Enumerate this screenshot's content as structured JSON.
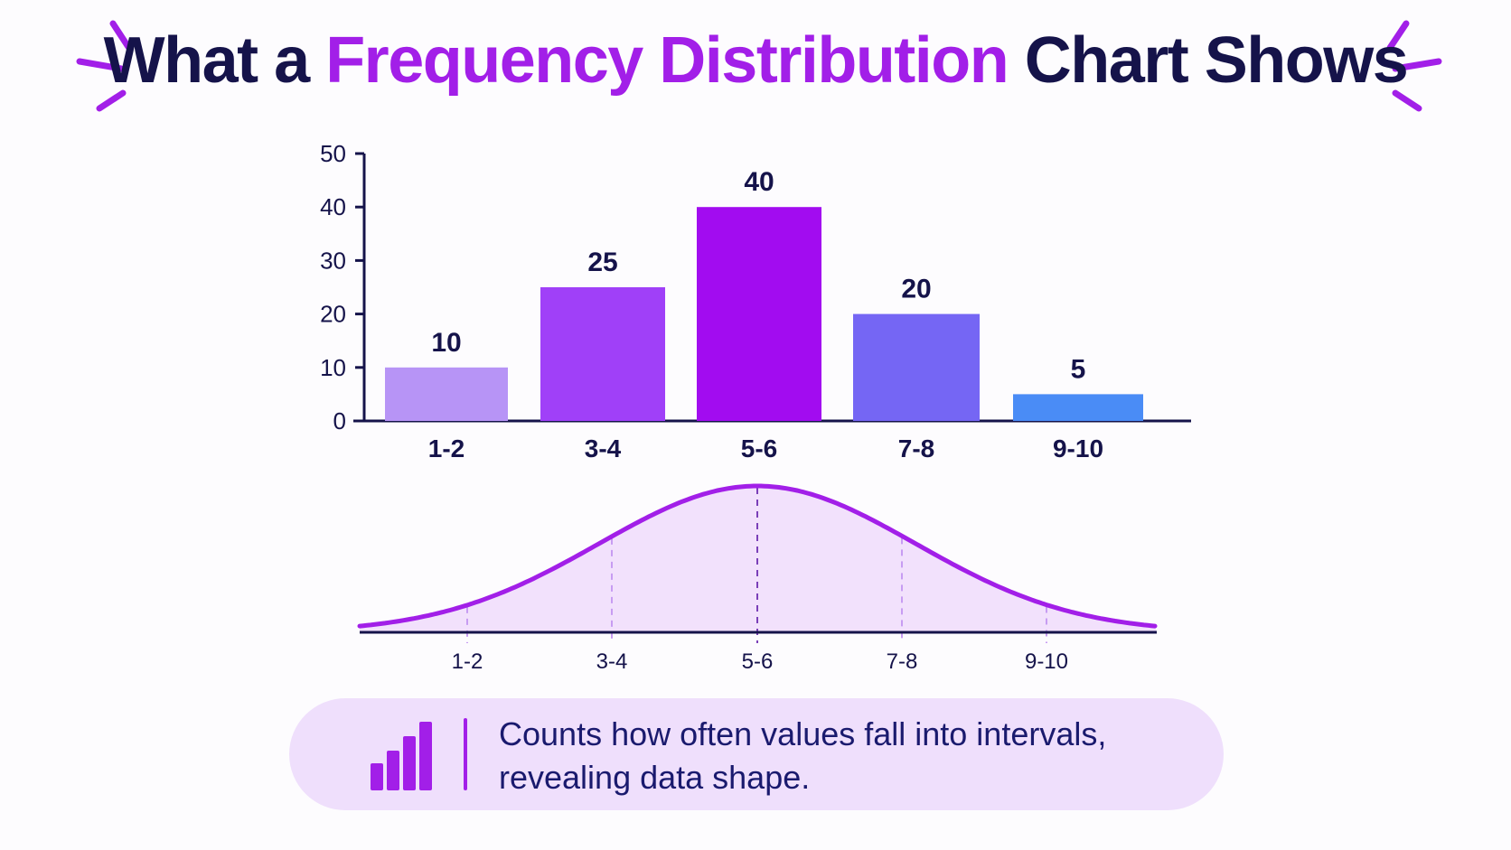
{
  "title": {
    "part1": "What a ",
    "accent": "Frequency Distribution",
    "part2": " Chart Shows"
  },
  "colors": {
    "title_dark": "#15134a",
    "accent": "#a21fe8",
    "curve": "#a21fe8",
    "curve_fill": "#f0dcfb",
    "caption_bg": "#efdffc",
    "axis": "#15134a"
  },
  "chart_data": [
    {
      "type": "bar",
      "categories": [
        "1-2",
        "3-4",
        "5-6",
        "7-8",
        "9-10"
      ],
      "values": [
        10,
        25,
        40,
        20,
        5
      ],
      "data_labels": [
        "10",
        "25",
        "40",
        "20",
        "5"
      ],
      "bar_colors": [
        "#b794f6",
        "#a040f8",
        "#a20cf0",
        "#7566f4",
        "#4a8cf6"
      ],
      "yticks": [
        0,
        10,
        20,
        30,
        40,
        50
      ],
      "ylim": [
        0,
        50
      ],
      "grid": false,
      "title": "",
      "xlabel": "",
      "ylabel": ""
    },
    {
      "type": "area",
      "description_curve": "bell",
      "categories": [
        "1-2",
        "3-4",
        "5-6",
        "7-8",
        "9-10"
      ],
      "peak_category": "5-6",
      "dashed_guides": [
        "1-2",
        "3-4",
        "5-6",
        "7-8",
        "9-10"
      ],
      "title": "",
      "xlabel": "",
      "ylabel": ""
    }
  ],
  "caption": {
    "icon": "bar-chart-icon",
    "text_line1": "Counts how often values fall into intervals,",
    "text_line2": "revealing data shape."
  }
}
